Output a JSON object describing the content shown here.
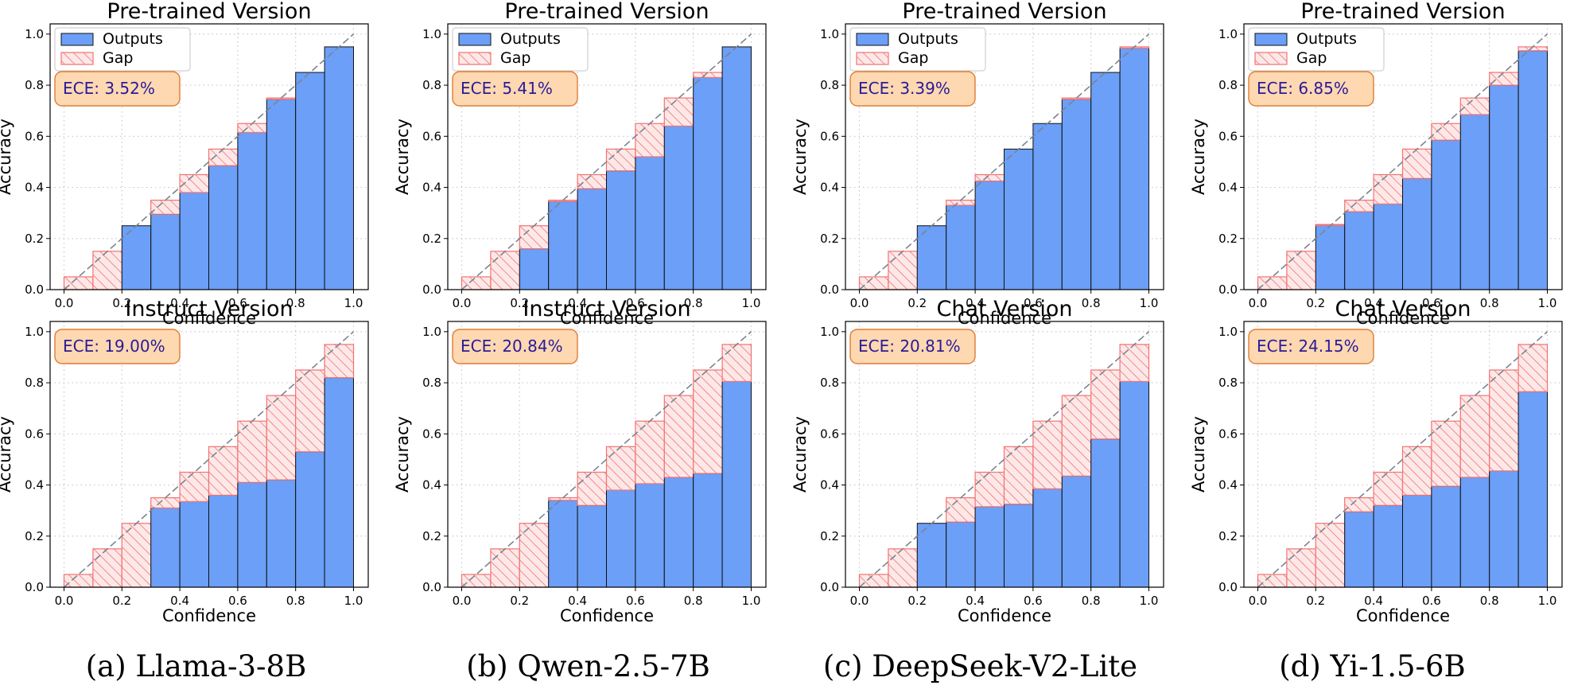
{
  "colors": {
    "outputs": "#6b9ff8",
    "gap_fill": "#fde8e8",
    "gap_stroke": "#f27272",
    "ece_box": "#fdd8b0",
    "ece_text": "#2a1a9a"
  },
  "legend": {
    "outputs": "Outputs",
    "gap": "Gap"
  },
  "axes": {
    "xlabel": "Confidence",
    "ylabel": "Accuracy",
    "xlim": [
      0,
      1
    ],
    "ylim": [
      0,
      1.04
    ],
    "ticks": [
      "0.0",
      "0.2",
      "0.4",
      "0.6",
      "0.8",
      "1.0"
    ]
  },
  "captions": [
    "(a) Llama-3-8B",
    "(b) Qwen-2.5-7B",
    "(c) DeepSeek-V2-Lite",
    "(d) Yi-1.5-6B"
  ],
  "chart_data": [
    {
      "type": "bar",
      "title": "Pre-trained Version",
      "ece": "ECE: 3.52%",
      "legend": true,
      "column": 0,
      "row": 0,
      "outputs": [
        0,
        0,
        0.25,
        0.295,
        0.38,
        0.485,
        0.615,
        0.745,
        0.85,
        0.95
      ]
    },
    {
      "type": "bar",
      "title": "Pre-trained Version",
      "ece": "ECE: 5.41%",
      "legend": true,
      "column": 1,
      "row": 0,
      "outputs": [
        0,
        0,
        0.16,
        0.345,
        0.395,
        0.465,
        0.52,
        0.64,
        0.83,
        0.95
      ]
    },
    {
      "type": "bar",
      "title": "Pre-trained Version",
      "ece": "ECE: 3.39%",
      "legend": true,
      "column": 2,
      "row": 0,
      "outputs": [
        0,
        0,
        0.25,
        0.33,
        0.425,
        0.55,
        0.65,
        0.745,
        0.85,
        0.945
      ]
    },
    {
      "type": "bar",
      "title": "Pre-trained Version",
      "ece": "ECE: 6.85%",
      "legend": true,
      "column": 3,
      "row": 0,
      "outputs": [
        0,
        0,
        0.255,
        0.305,
        0.335,
        0.435,
        0.585,
        0.685,
        0.8,
        0.935
      ]
    },
    {
      "type": "bar",
      "title": "Instruct Version",
      "ece": "ECE: 19.00%",
      "legend": false,
      "column": 0,
      "row": 1,
      "outputs": [
        0,
        0,
        0,
        0.31,
        0.335,
        0.36,
        0.41,
        0.42,
        0.53,
        0.82
      ]
    },
    {
      "type": "bar",
      "title": "Instruct Version",
      "ece": "ECE: 20.84%",
      "legend": false,
      "column": 1,
      "row": 1,
      "outputs": [
        0,
        0,
        0,
        0.34,
        0.32,
        0.38,
        0.405,
        0.43,
        0.445,
        0.805
      ]
    },
    {
      "type": "bar",
      "title": "Chat Version",
      "ece": "ECE: 20.81%",
      "legend": false,
      "column": 2,
      "row": 1,
      "outputs": [
        0,
        0,
        0.25,
        0.255,
        0.315,
        0.325,
        0.385,
        0.435,
        0.58,
        0.805
      ]
    },
    {
      "type": "bar",
      "title": "Chat Version",
      "ece": "ECE: 24.15%",
      "legend": false,
      "column": 3,
      "row": 1,
      "outputs": [
        0,
        0,
        0,
        0.295,
        0.32,
        0.36,
        0.395,
        0.43,
        0.455,
        0.765
      ]
    }
  ]
}
